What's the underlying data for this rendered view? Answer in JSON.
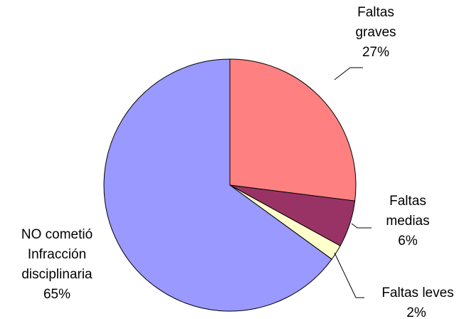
{
  "chart_data": {
    "type": "pie",
    "categories": [
      "Faltas graves",
      "Faltas medias",
      "Faltas leves",
      "NO cometió Infracción disciplinaria"
    ],
    "values": [
      27,
      6,
      2,
      65
    ],
    "value_labels": [
      "27%",
      "6%",
      "2%",
      "65%"
    ],
    "colors": [
      "#ff8080",
      "#993366",
      "#ffffcc",
      "#9999ff"
    ]
  }
}
